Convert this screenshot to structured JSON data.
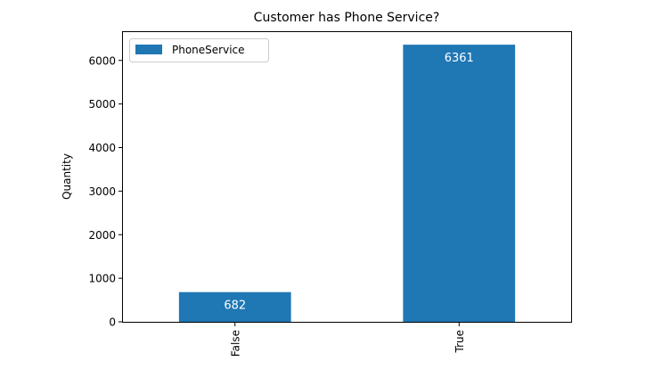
{
  "chart_data": {
    "type": "bar",
    "title": "Customer has Phone Service?",
    "xlabel": "",
    "ylabel": "Quantity",
    "categories": [
      "False",
      "True"
    ],
    "series": [
      {
        "name": "PhoneService",
        "values": [
          682,
          6361
        ],
        "color": "#1f77b4"
      }
    ],
    "data_labels": [
      "682",
      "6361"
    ],
    "ylim": [
      0,
      6650
    ],
    "yticks": [
      0,
      1000,
      2000,
      3000,
      4000,
      5000,
      6000
    ],
    "grid": false,
    "legend_position": "upper-left"
  }
}
